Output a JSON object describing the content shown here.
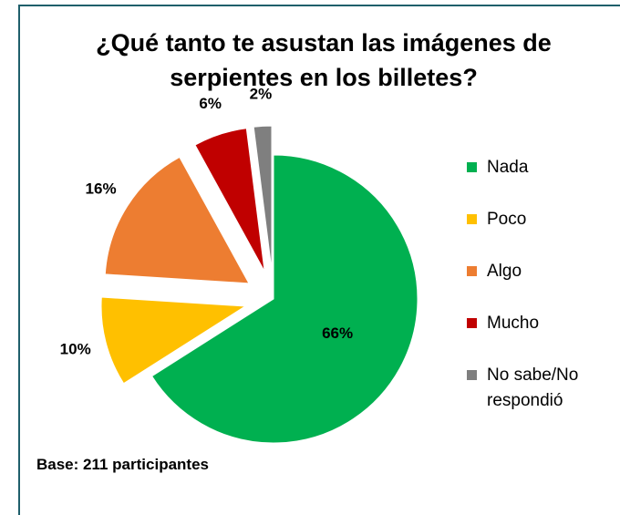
{
  "chart_data": {
    "type": "pie",
    "title": "¿Qué tanto te asustan las imágenes de serpientes en los billetes?",
    "categories": [
      "Nada",
      "Poco",
      "Algo",
      "Mucho",
      "No sabe/No respondió"
    ],
    "values": [
      66,
      10,
      16,
      6,
      2
    ],
    "value_labels": [
      "66%",
      "10%",
      "16%",
      "6%",
      "2%"
    ],
    "colors": [
      "#00b050",
      "#ffc000",
      "#ed7d31",
      "#c00000",
      "#7f7f7f"
    ],
    "legend": "right",
    "note": "Base: 211 participantes"
  }
}
